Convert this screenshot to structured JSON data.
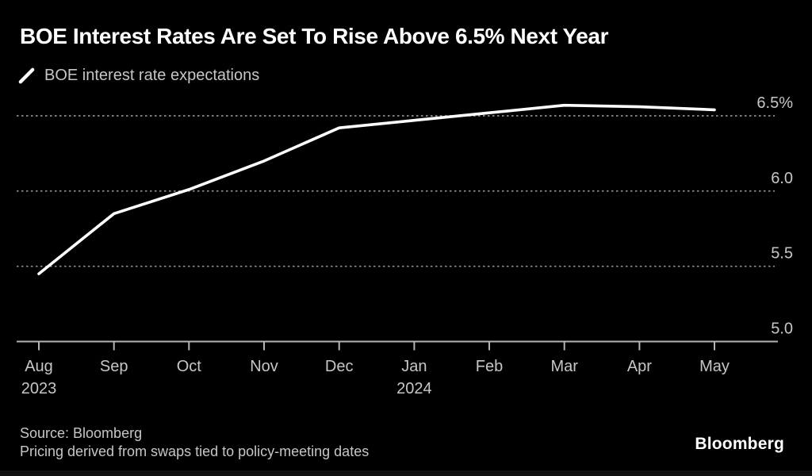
{
  "header": {
    "title": "BOE Interest Rates Are Set To Rise Above 6.5% Next Year",
    "legend": {
      "icon": "line-series-slash-icon",
      "label": "BOE interest rate expectations"
    }
  },
  "chart_data": {
    "type": "line",
    "title": "BOE Interest Rates Are Set To Rise Above 6.5% Next Year",
    "categories": [
      "Aug 2023",
      "Sep",
      "Oct",
      "Nov",
      "Dec",
      "Jan 2024",
      "Feb",
      "Mar",
      "Apr",
      "May"
    ],
    "x_tick_labels": [
      {
        "line1": "Aug",
        "line2": "2023"
      },
      {
        "line1": "Sep"
      },
      {
        "line1": "Oct"
      },
      {
        "line1": "Nov"
      },
      {
        "line1": "Dec"
      },
      {
        "line1": "Jan",
        "line2": "2024"
      },
      {
        "line1": "Feb"
      },
      {
        "line1": "Mar"
      },
      {
        "line1": "Apr"
      },
      {
        "line1": "May"
      }
    ],
    "series": [
      {
        "name": "BOE interest rate expectations",
        "color": "#ffffff",
        "values": [
          5.45,
          5.85,
          6.01,
          6.2,
          6.42,
          6.47,
          6.52,
          6.57,
          6.56,
          6.54
        ]
      }
    ],
    "y_ticks": [
      {
        "value": 6.5,
        "label": "6.5%"
      },
      {
        "value": 6.0,
        "label": "6.0"
      },
      {
        "value": 5.5,
        "label": "5.5"
      },
      {
        "value": 5.0,
        "label": "5.0"
      }
    ],
    "ylim": [
      5.0,
      6.66
    ],
    "xlabel": "",
    "ylabel": "",
    "unit": "%",
    "grid": "horizontal-dashed",
    "legend_position": "top-left"
  },
  "footer": {
    "source_line1": "Source: Bloomberg",
    "source_line2": "Pricing derived from swaps tied to policy-meeting dates",
    "logo": "Bloomberg"
  },
  "colors": {
    "background": "#000000",
    "text_primary": "#ffffff",
    "text_secondary": "#c6c6c6",
    "gridline": "#909090",
    "axis": "#b5b5b5",
    "series_line": "#ffffff"
  }
}
